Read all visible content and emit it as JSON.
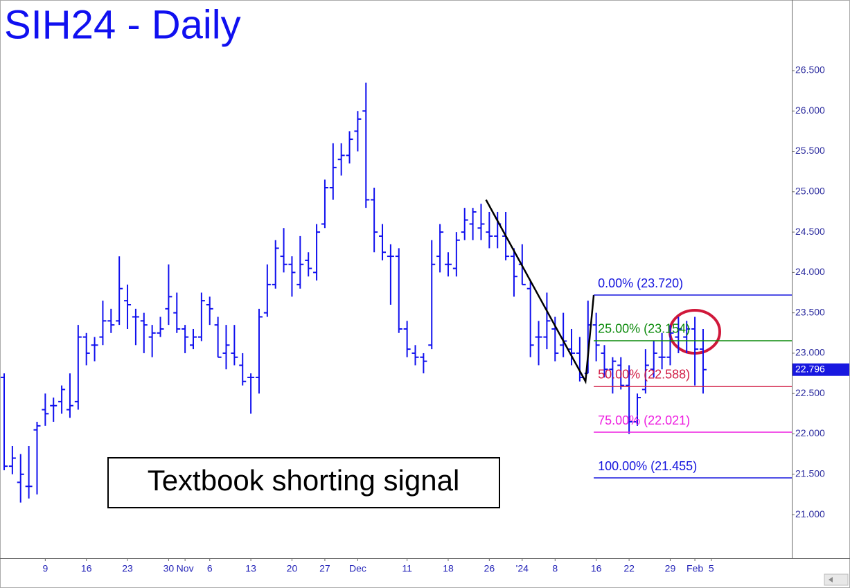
{
  "chart_data": {
    "type": "ohlc",
    "title": "SIH24 - Daily",
    "annotation": "Textbook shorting signal",
    "color": "#1010ee",
    "categories": [
      null,
      null,
      null,
      null,
      null,
      "9",
      null,
      null,
      null,
      null,
      "16",
      null,
      null,
      null,
      null,
      "23",
      null,
      null,
      null,
      null,
      "30",
      null,
      "Nov",
      null,
      null,
      "6",
      null,
      null,
      null,
      null,
      "13",
      null,
      null,
      null,
      null,
      "20",
      null,
      null,
      null,
      "27",
      null,
      null,
      null,
      "Dec",
      null,
      null,
      null,
      null,
      null,
      "11",
      null,
      null,
      null,
      null,
      "18",
      null,
      null,
      null,
      null,
      "26",
      null,
      null,
      null,
      "'24",
      null,
      null,
      null,
      "8",
      null,
      null,
      null,
      null,
      "16",
      null,
      null,
      null,
      "22",
      null,
      null,
      null,
      null,
      "29",
      null,
      null,
      "Feb",
      null,
      "5"
    ],
    "open": [
      22.7,
      21.6,
      21.4,
      21.35,
      22.05,
      22.3,
      22.35,
      22.4,
      22.3,
      22.4,
      23.2,
      23.1,
      23.2,
      23.4,
      23.4,
      23.65,
      23.45,
      23.4,
      23.2,
      23.25,
      23.55,
      23.5,
      23.3,
      23.1,
      23.2,
      23.6,
      23.35,
      23.0,
      23.0,
      22.85,
      22.7,
      22.7,
      23.5,
      23.85,
      24.2,
      24.1,
      23.85,
      24.15,
      24.0,
      24.6,
      25.05,
      25.4,
      25.45,
      25.75,
      26.0,
      24.9,
      24.45,
      24.2,
      24.2,
      23.3,
      23.0,
      22.95,
      23.1,
      24.2,
      24.1,
      24.05,
      24.5,
      24.6,
      24.55,
      24.5,
      24.45,
      24.45,
      24.2,
      24.1,
      23.8,
      23.2,
      23.2,
      23.3,
      23.1,
      23.05,
      23.0,
      22.75,
      23.35,
      23.0,
      22.8,
      22.85,
      22.6,
      22.15,
      22.55,
      22.8,
      22.95,
      22.95,
      23.2,
      23.2,
      23.3,
      23.05,
      null
    ],
    "high": [
      22.75,
      21.85,
      21.75,
      21.85,
      22.15,
      22.5,
      22.45,
      22.6,
      22.75,
      23.35,
      23.25,
      23.2,
      23.65,
      23.55,
      24.2,
      23.85,
      23.55,
      23.5,
      23.35,
      23.45,
      24.1,
      23.75,
      23.35,
      23.3,
      23.75,
      23.7,
      23.45,
      23.35,
      23.35,
      23.0,
      22.75,
      23.55,
      24.1,
      24.4,
      24.55,
      24.2,
      24.45,
      24.25,
      24.6,
      25.15,
      25.6,
      25.6,
      25.75,
      26.0,
      26.35,
      25.05,
      24.6,
      24.35,
      24.3,
      23.4,
      23.1,
      23.0,
      24.4,
      24.6,
      24.25,
      24.5,
      24.8,
      24.8,
      24.85,
      24.75,
      24.75,
      24.75,
      24.3,
      24.35,
      23.9,
      23.4,
      23.75,
      23.45,
      23.5,
      23.3,
      23.2,
      23.65,
      23.5,
      23.1,
      22.95,
      22.95,
      22.85,
      22.5,
      23.05,
      23.15,
      23.25,
      23.35,
      23.45,
      23.4,
      23.45,
      23.3,
      null
    ],
    "low": [
      21.55,
      21.5,
      21.15,
      21.2,
      21.25,
      22.1,
      22.15,
      22.25,
      22.2,
      22.3,
      22.85,
      22.9,
      23.1,
      23.25,
      23.35,
      23.3,
      23.1,
      23.0,
      22.95,
      23.2,
      23.35,
      23.25,
      23.0,
      23.05,
      23.15,
      23.35,
      22.95,
      22.8,
      22.85,
      22.6,
      22.25,
      22.5,
      23.45,
      23.8,
      24.0,
      23.7,
      23.8,
      23.95,
      23.9,
      24.55,
      24.9,
      25.2,
      25.35,
      25.5,
      24.8,
      24.25,
      24.15,
      23.6,
      23.25,
      22.95,
      22.85,
      22.75,
      23.05,
      24.0,
      23.95,
      23.95,
      24.4,
      24.4,
      24.4,
      24.3,
      24.3,
      24.15,
      23.7,
      23.85,
      22.95,
      22.85,
      23.05,
      22.9,
      22.95,
      22.85,
      22.65,
      22.75,
      22.9,
      22.7,
      22.5,
      22.55,
      22.0,
      22.1,
      22.5,
      22.7,
      22.8,
      22.85,
      23.0,
      23.0,
      22.6,
      22.5,
      null
    ],
    "close": [
      21.6,
      21.7,
      21.5,
      21.35,
      22.1,
      22.25,
      22.35,
      22.55,
      22.35,
      23.2,
      23.0,
      23.1,
      23.4,
      23.35,
      23.8,
      23.6,
      23.45,
      23.35,
      23.25,
      23.3,
      23.7,
      23.3,
      23.2,
      23.2,
      23.65,
      23.55,
      22.95,
      23.1,
      22.95,
      22.65,
      22.7,
      23.45,
      23.85,
      24.3,
      24.1,
      24.0,
      24.1,
      24.05,
      24.5,
      25.05,
      25.3,
      25.45,
      25.65,
      25.9,
      24.9,
      24.5,
      24.25,
      24.2,
      23.3,
      23.05,
      22.95,
      22.9,
      24.1,
      24.5,
      24.1,
      24.4,
      24.65,
      24.75,
      24.6,
      24.45,
      24.6,
      24.2,
      23.95,
      23.85,
      23.1,
      23.2,
      23.4,
      23.0,
      23.15,
      23.0,
      22.7,
      23.35,
      23.1,
      22.8,
      22.9,
      22.6,
      22.15,
      22.45,
      22.85,
      23.0,
      22.95,
      23.25,
      23.3,
      23.3,
      23.05,
      22.796,
      null
    ],
    "last_price": {
      "value": 22.796,
      "label": "22.796"
    },
    "ylim": [
      20.46,
      27.375
    ],
    "yticks": [
      {
        "value": 21,
        "label": "21.000"
      },
      {
        "value": 21.5,
        "label": "21.500"
      },
      {
        "value": 22,
        "label": "22.000"
      },
      {
        "value": 22.5,
        "label": "22.500"
      },
      {
        "value": 23,
        "label": "23.000"
      },
      {
        "value": 23.5,
        "label": "23.500"
      },
      {
        "value": 24,
        "label": "24.000"
      },
      {
        "value": 24.5,
        "label": "24.500"
      },
      {
        "value": 25,
        "label": "25.000"
      },
      {
        "value": 25.5,
        "label": "25.500"
      },
      {
        "value": 26,
        "label": "26.000"
      },
      {
        "value": 26.5,
        "label": "26.500"
      }
    ],
    "trendline": {
      "x": [
        58.6,
        70.7,
        71.7
      ],
      "y": [
        24.9,
        22.65,
        23.72
      ],
      "color": "#000000"
    },
    "fib_levels": [
      {
        "label": "0.00% (23.720)",
        "value": 23.72,
        "color": "#1414dd"
      },
      {
        "label": "25.00% (23.154)",
        "value": 23.154,
        "color": "#0a8a0a"
      },
      {
        "label": "50.00% (22.588)",
        "value": 22.588,
        "color": "#d21e46"
      },
      {
        "label": "75.00% (22.021)",
        "value": 22.021,
        "color": "#ee1ee0"
      },
      {
        "label": "100.00% (21.455)",
        "value": 21.455,
        "color": "#1414dd"
      }
    ]
  }
}
